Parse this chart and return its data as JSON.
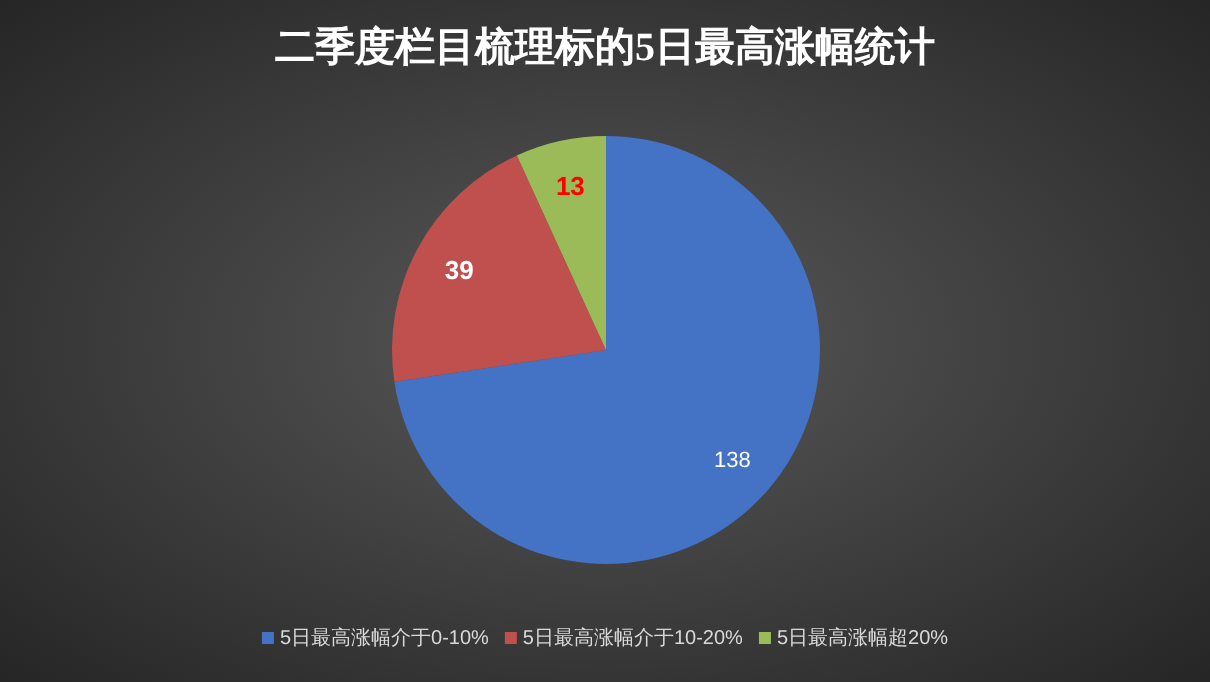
{
  "chart_data": {
    "type": "pie",
    "title": "二季度栏目梳理标的5日最高涨幅统计",
    "categories": [
      "5日最高涨幅介于0-10%",
      "5日最高涨幅介于10-20%",
      "5日最高涨幅超20%"
    ],
    "values": [
      138,
      39,
      13
    ],
    "colors": [
      "#4472c4",
      "#c0504d",
      "#9bbb59"
    ],
    "data_labels": true,
    "legend": "bottom"
  }
}
